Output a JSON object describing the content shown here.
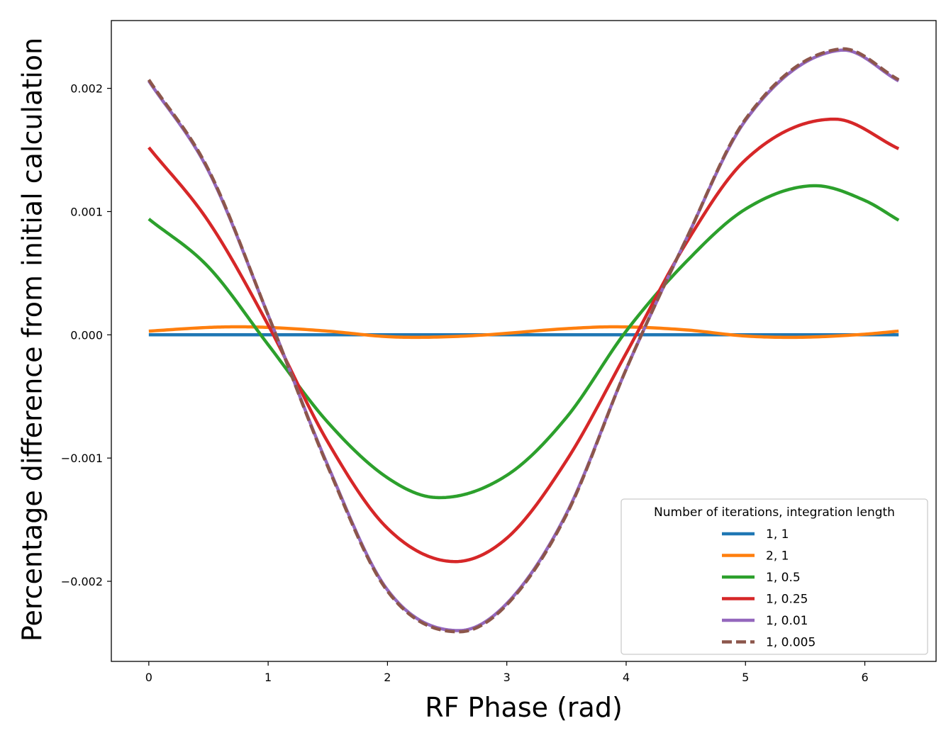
{
  "chart_data": {
    "type": "line",
    "title": "",
    "xlabel": "RF Phase (rad)",
    "ylabel": "Percentage difference from initial calculation",
    "xlim": [
      -0.314,
      6.597
    ],
    "ylim": [
      -0.00265,
      0.00255
    ],
    "xticks": [
      0,
      1,
      2,
      3,
      4,
      5,
      6
    ],
    "xtick_labels": [
      "0",
      "1",
      "2",
      "3",
      "4",
      "5",
      "6"
    ],
    "yticks": [
      -0.002,
      -0.001,
      0.0,
      0.001,
      0.002
    ],
    "ytick_labels": [
      "−0.002",
      "−0.001",
      "0.000",
      "0.001",
      "0.002"
    ],
    "x_range": [
      0,
      6.2832
    ],
    "grid": false,
    "legend": {
      "title": "Number of iterations, integration length",
      "placement": "lower-right"
    },
    "series": [
      {
        "name": "1, 1",
        "color": "#1f77b4",
        "dash": "solid",
        "x": [
          0,
          0.5,
          1,
          1.5,
          2,
          2.5,
          3,
          3.5,
          4,
          4.5,
          5,
          5.5,
          6,
          6.2832
        ],
        "y": [
          0,
          0,
          0,
          0,
          0,
          0,
          0,
          0,
          0,
          0,
          0,
          0,
          0,
          0
        ]
      },
      {
        "name": "2, 1",
        "color": "#ff7f0e",
        "dash": "solid",
        "x": [
          0,
          0.5,
          0.75,
          1,
          1.5,
          2,
          2.3,
          2.75,
          3.5,
          3.9,
          4.5,
          5,
          5.45,
          6,
          6.2832
        ],
        "y": [
          3e-05,
          6e-05,
          6.5e-05,
          6e-05,
          3e-05,
          -1.5e-05,
          -2e-05,
          -5e-06,
          5e-05,
          6.5e-05,
          4e-05,
          -1e-05,
          -2e-05,
          5e-06,
          3e-05
        ]
      },
      {
        "name": "1, 0.5",
        "color": "#2ca02c",
        "dash": "solid",
        "x": [
          0,
          0.5,
          1,
          1.5,
          2,
          2.4,
          3,
          3.5,
          4,
          4.5,
          5,
          5.57,
          6,
          6.2832
        ],
        "y": [
          0.00094,
          0.00055,
          -8e-05,
          -0.00071,
          -0.00116,
          -0.00132,
          -0.00114,
          -0.00067,
          3e-05,
          0.00059,
          0.00102,
          0.00121,
          0.00109,
          0.00093
        ]
      },
      {
        "name": "1, 0.25",
        "color": "#d62728",
        "dash": "solid",
        "x": [
          0,
          0.5,
          1,
          1.5,
          2,
          2.55,
          3,
          3.5,
          4,
          4.5,
          5,
          5.75,
          6.2832
        ],
        "y": [
          0.00152,
          0.00092,
          8e-05,
          -0.00087,
          -0.00157,
          -0.00184,
          -0.00165,
          -0.00102,
          -0.00015,
          0.00074,
          0.00142,
          0.00175,
          0.00151
        ]
      },
      {
        "name": "1, 0.01",
        "color": "#9467bd",
        "dash": "solid",
        "x": [
          0,
          0.5,
          1,
          1.5,
          2,
          2.6,
          3,
          3.5,
          4,
          4.5,
          5,
          5.8,
          6.2832
        ],
        "y": [
          0.00206,
          0.00133,
          0.00016,
          -0.00106,
          -0.00207,
          -0.0024,
          -0.00218,
          -0.00145,
          -0.00028,
          0.00077,
          0.00174,
          0.00231,
          0.00206
        ]
      },
      {
        "name": "1, 0.005",
        "color": "#8c564b",
        "dash": "dashed",
        "x": [
          0,
          0.5,
          1,
          1.5,
          2,
          2.6,
          3,
          3.5,
          4,
          4.5,
          5,
          5.8,
          6.2832
        ],
        "y": [
          0.00207,
          0.00134,
          0.00016,
          -0.00107,
          -0.00208,
          -0.00241,
          -0.00219,
          -0.00146,
          -0.00028,
          0.00077,
          0.00175,
          0.00232,
          0.00207
        ]
      }
    ]
  }
}
